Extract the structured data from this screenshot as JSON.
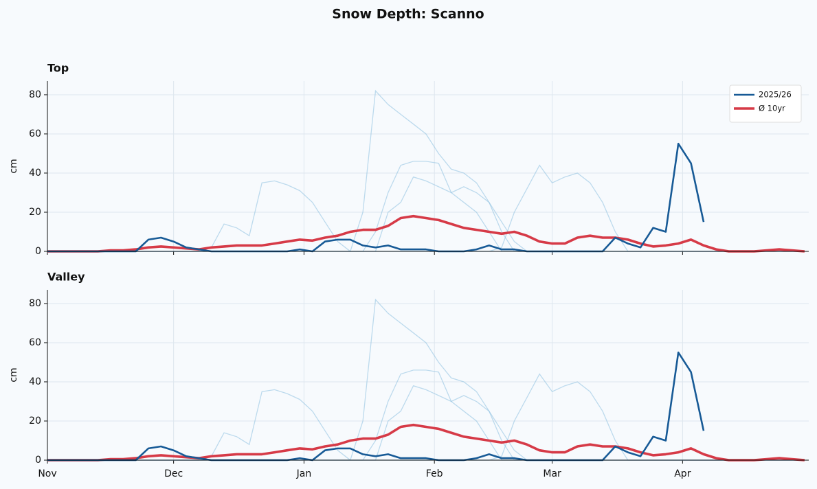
{
  "title": "Snow Depth: Scanno",
  "chart_data": [
    {
      "type": "line",
      "title": "Top",
      "y_label": "cm",
      "x": [
        0,
        3,
        6,
        9,
        12,
        15,
        18,
        21,
        24,
        27,
        30,
        33,
        36,
        39,
        42,
        45,
        48,
        51,
        54,
        57,
        60,
        63,
        66,
        69,
        72,
        75,
        78,
        81,
        84,
        87,
        90,
        93,
        96,
        99,
        102,
        105,
        108,
        111,
        114,
        117,
        120,
        123,
        126,
        129,
        132,
        135,
        138,
        141,
        144,
        147,
        150,
        153,
        156,
        159,
        162,
        165,
        168,
        171,
        174,
        177,
        180
      ],
      "xlim": [
        0,
        181
      ],
      "xticks": [
        0,
        30,
        61,
        92,
        120,
        151
      ],
      "ylim": [
        0,
        87
      ],
      "yticks": [
        0,
        20,
        40,
        60,
        80
      ],
      "grid": true,
      "legend": "upper right",
      "background_color": "#8dbfe0",
      "background_series": [
        {
          "values": [
            0,
            0,
            0,
            0,
            0,
            0,
            0,
            0,
            0,
            0,
            0,
            0,
            0,
            2,
            14,
            12,
            8,
            35,
            36,
            34,
            31,
            25,
            15,
            5,
            0,
            0,
            0,
            0,
            0,
            0,
            0,
            0,
            0,
            0,
            0,
            0,
            0,
            0,
            0,
            0,
            0,
            0,
            0,
            0,
            0,
            0,
            0,
            0,
            0,
            0,
            0,
            0,
            0,
            0,
            0,
            0,
            0,
            0,
            0,
            0,
            0
          ]
        },
        {
          "values": [
            0,
            0,
            0,
            0,
            0,
            0,
            0,
            0,
            0,
            0,
            0,
            0,
            0,
            0,
            0,
            0,
            0,
            0,
            0,
            0,
            0,
            0,
            0,
            0,
            0,
            20,
            82,
            75,
            70,
            65,
            60,
            50,
            42,
            40,
            35,
            25,
            10,
            0,
            0,
            0,
            0,
            0,
            0,
            0,
            0,
            0,
            0,
            0,
            0,
            0,
            0,
            0,
            0,
            0,
            0,
            0,
            0,
            0,
            0,
            0,
            0
          ]
        },
        {
          "values": [
            0,
            0,
            0,
            0,
            0,
            0,
            0,
            0,
            0,
            0,
            0,
            0,
            0,
            0,
            0,
            0,
            0,
            0,
            0,
            0,
            0,
            0,
            0,
            0,
            0,
            0,
            10,
            30,
            44,
            46,
            46,
            45,
            30,
            25,
            20,
            10,
            0,
            0,
            0,
            0,
            0,
            0,
            0,
            0,
            0,
            0,
            0,
            0,
            0,
            0,
            0,
            0,
            0,
            0,
            0,
            0,
            0,
            0,
            0,
            0,
            0
          ]
        },
        {
          "values": [
            0,
            0,
            0,
            0,
            0,
            0,
            0,
            0,
            0,
            0,
            0,
            0,
            0,
            0,
            0,
            0,
            0,
            0,
            0,
            0,
            0,
            0,
            0,
            0,
            0,
            0,
            0,
            0,
            0,
            0,
            0,
            0,
            0,
            0,
            0,
            0,
            2,
            20,
            32,
            44,
            35,
            38,
            40,
            35,
            25,
            10,
            0,
            0,
            0,
            0,
            0,
            0,
            0,
            0,
            0,
            0,
            0,
            0,
            0,
            0,
            0
          ]
        },
        {
          "values": [
            0,
            0,
            0,
            0,
            0,
            0,
            0,
            0,
            0,
            0,
            0,
            0,
            0,
            0,
            0,
            0,
            0,
            0,
            0,
            0,
            0,
            0,
            0,
            0,
            0,
            0,
            0,
            20,
            25,
            38,
            36,
            33,
            30,
            33,
            30,
            25,
            15,
            5,
            0,
            0,
            0,
            0,
            0,
            0,
            0,
            0,
            0,
            0,
            0,
            0,
            0,
            0,
            0,
            0,
            0,
            0,
            0,
            0,
            0,
            0,
            0
          ]
        }
      ],
      "series": [
        {
          "name": "2025/26",
          "color": "#175a96",
          "values": [
            0,
            0,
            0,
            0,
            0,
            0,
            0,
            0,
            6,
            7,
            5,
            2,
            1,
            0,
            0,
            0,
            0,
            0,
            0,
            0,
            1,
            0,
            5,
            6,
            6,
            3,
            2,
            3,
            1,
            1,
            1,
            0,
            0,
            0,
            1,
            3,
            1,
            1,
            0,
            0,
            0,
            0,
            0,
            0,
            0,
            7,
            4,
            2,
            12,
            10,
            55,
            45,
            15,
            null,
            null,
            null,
            null,
            null,
            null,
            null,
            null
          ]
        },
        {
          "name": "Ø 10yr",
          "color": "#d63a47",
          "values": [
            0,
            0,
            0,
            0,
            0,
            0.5,
            0.5,
            1,
            2,
            2.5,
            2,
            1.5,
            1,
            2,
            2.5,
            3,
            3,
            3,
            4,
            5,
            6,
            5.5,
            7,
            8,
            10,
            11,
            11,
            13,
            17,
            18,
            17,
            16,
            14,
            12,
            11,
            10,
            9,
            10,
            8,
            5,
            4,
            4,
            7,
            8,
            7,
            7,
            6,
            4,
            2.5,
            3,
            4,
            6,
            3,
            1,
            0,
            0,
            0,
            0.5,
            1,
            0.5,
            0
          ]
        }
      ]
    },
    {
      "type": "line",
      "title": "Valley",
      "y_label": "cm",
      "x": [
        0,
        3,
        6,
        9,
        12,
        15,
        18,
        21,
        24,
        27,
        30,
        33,
        36,
        39,
        42,
        45,
        48,
        51,
        54,
        57,
        60,
        63,
        66,
        69,
        72,
        75,
        78,
        81,
        84,
        87,
        90,
        93,
        96,
        99,
        102,
        105,
        108,
        111,
        114,
        117,
        120,
        123,
        126,
        129,
        132,
        135,
        138,
        141,
        144,
        147,
        150,
        153,
        156,
        159,
        162,
        165,
        168,
        171,
        174,
        177,
        180
      ],
      "xlim": [
        0,
        181
      ],
      "xticks": [
        {
          "value": 0,
          "label": "Nov"
        },
        {
          "value": 30,
          "label": "Dec"
        },
        {
          "value": 61,
          "label": "Jan"
        },
        {
          "value": 92,
          "label": "Feb"
        },
        {
          "value": 120,
          "label": "Mar"
        },
        {
          "value": 151,
          "label": "Apr"
        }
      ],
      "ylim": [
        0,
        87
      ],
      "yticks": [
        0,
        20,
        40,
        60,
        80
      ],
      "grid": true,
      "background_color": "#8dbfe0",
      "background_series": [
        {
          "values": [
            0,
            0,
            0,
            0,
            0,
            0,
            0,
            0,
            0,
            0,
            0,
            0,
            0,
            2,
            14,
            12,
            8,
            35,
            36,
            34,
            31,
            25,
            15,
            5,
            0,
            0,
            0,
            0,
            0,
            0,
            0,
            0,
            0,
            0,
            0,
            0,
            0,
            0,
            0,
            0,
            0,
            0,
            0,
            0,
            0,
            0,
            0,
            0,
            0,
            0,
            0,
            0,
            0,
            0,
            0,
            0,
            0,
            0,
            0,
            0,
            0
          ]
        },
        {
          "values": [
            0,
            0,
            0,
            0,
            0,
            0,
            0,
            0,
            0,
            0,
            0,
            0,
            0,
            0,
            0,
            0,
            0,
            0,
            0,
            0,
            0,
            0,
            0,
            0,
            0,
            20,
            82,
            75,
            70,
            65,
            60,
            50,
            42,
            40,
            35,
            25,
            10,
            0,
            0,
            0,
            0,
            0,
            0,
            0,
            0,
            0,
            0,
            0,
            0,
            0,
            0,
            0,
            0,
            0,
            0,
            0,
            0,
            0,
            0,
            0,
            0
          ]
        },
        {
          "values": [
            0,
            0,
            0,
            0,
            0,
            0,
            0,
            0,
            0,
            0,
            0,
            0,
            0,
            0,
            0,
            0,
            0,
            0,
            0,
            0,
            0,
            0,
            0,
            0,
            0,
            0,
            10,
            30,
            44,
            46,
            46,
            45,
            30,
            25,
            20,
            10,
            0,
            0,
            0,
            0,
            0,
            0,
            0,
            0,
            0,
            0,
            0,
            0,
            0,
            0,
            0,
            0,
            0,
            0,
            0,
            0,
            0,
            0,
            0,
            0,
            0
          ]
        },
        {
          "values": [
            0,
            0,
            0,
            0,
            0,
            0,
            0,
            0,
            0,
            0,
            0,
            0,
            0,
            0,
            0,
            0,
            0,
            0,
            0,
            0,
            0,
            0,
            0,
            0,
            0,
            0,
            0,
            0,
            0,
            0,
            0,
            0,
            0,
            0,
            0,
            0,
            2,
            20,
            32,
            44,
            35,
            38,
            40,
            35,
            25,
            10,
            0,
            0,
            0,
            0,
            0,
            0,
            0,
            0,
            0,
            0,
            0,
            0,
            0,
            0,
            0
          ]
        },
        {
          "values": [
            0,
            0,
            0,
            0,
            0,
            0,
            0,
            0,
            0,
            0,
            0,
            0,
            0,
            0,
            0,
            0,
            0,
            0,
            0,
            0,
            0,
            0,
            0,
            0,
            0,
            0,
            0,
            20,
            25,
            38,
            36,
            33,
            30,
            33,
            30,
            25,
            15,
            5,
            0,
            0,
            0,
            0,
            0,
            0,
            0,
            0,
            0,
            0,
            0,
            0,
            0,
            0,
            0,
            0,
            0,
            0,
            0,
            0,
            0,
            0,
            0
          ]
        }
      ],
      "series": [
        {
          "color": "#175a96",
          "values": [
            0,
            0,
            0,
            0,
            0,
            0,
            0,
            0,
            6,
            7,
            5,
            2,
            1,
            0,
            0,
            0,
            0,
            0,
            0,
            0,
            1,
            0,
            5,
            6,
            6,
            3,
            2,
            3,
            1,
            1,
            1,
            0,
            0,
            0,
            1,
            3,
            1,
            1,
            0,
            0,
            0,
            0,
            0,
            0,
            0,
            7,
            4,
            2,
            12,
            10,
            55,
            45,
            15,
            null,
            null,
            null,
            null,
            null,
            null,
            null,
            null
          ]
        },
        {
          "color": "#d63a47",
          "values": [
            0,
            0,
            0,
            0,
            0,
            0.5,
            0.5,
            1,
            2,
            2.5,
            2,
            1.5,
            1,
            2,
            2.5,
            3,
            3,
            3,
            4,
            5,
            6,
            5.5,
            7,
            8,
            10,
            11,
            11,
            13,
            17,
            18,
            17,
            16,
            14,
            12,
            11,
            10,
            9,
            10,
            8,
            5,
            4,
            4,
            7,
            8,
            7,
            7,
            6,
            4,
            2.5,
            3,
            4,
            6,
            3,
            1,
            0,
            0,
            0,
            0.5,
            1,
            0.5,
            0
          ]
        }
      ]
    }
  ]
}
